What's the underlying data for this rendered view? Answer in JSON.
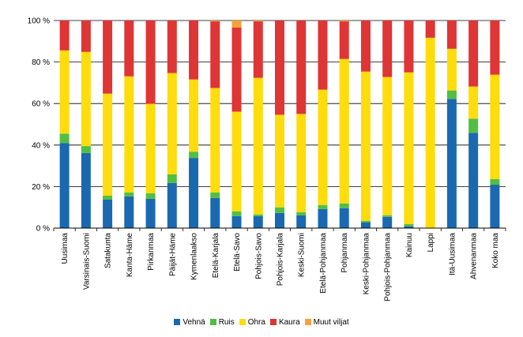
{
  "chart_data": {
    "type": "bar",
    "stacked": true,
    "ylim": [
      0,
      100
    ],
    "yticks": [
      "0 %",
      "20 %",
      "40 %",
      "60 %",
      "80 %",
      "100 %"
    ],
    "grid": true,
    "legend_position": "bottom",
    "categories": [
      "Uusimaa",
      "Varsinais-Suomi",
      "Satakunta",
      "Kanta-Häme",
      "Pirkanmaa",
      "Päijät-Häme",
      "Kymenlaakso",
      "Etelä-Karjala",
      "Etelä-Savo",
      "Pohjois-Savo",
      "Pohjois-Karjala",
      "Keski-Suomi",
      "Etelä-Pohjanmaa",
      "Pohjanmaa",
      "Keski-Pohjanmaa",
      "Pohjois-Pohjanmaa",
      "Kainuu",
      "Lappi",
      "Itä-Uusimaa",
      "Ahvenanmaa",
      "Koko maa"
    ],
    "series": [
      {
        "name": "Vehnä",
        "color": "#1a69b0",
        "values": [
          41.0,
          36.2,
          13.7,
          15.3,
          14.1,
          21.7,
          33.8,
          14.5,
          5.8,
          5.8,
          7.3,
          6.2,
          9.2,
          9.6,
          2.8,
          5.4,
          0.9,
          0,
          62.2,
          45.9,
          20.9
        ]
      },
      {
        "name": "Ruis",
        "color": "#52be43",
        "values": [
          4.5,
          3.3,
          1.9,
          1.9,
          2.7,
          4.2,
          3.0,
          2.7,
          2.3,
          0.8,
          2.7,
          1.5,
          1.9,
          2.3,
          0.7,
          0.8,
          1.1,
          0,
          4.1,
          6.8,
          2.7
        ]
      },
      {
        "name": "Ohra",
        "color": "#ffdc0b",
        "values": [
          40.1,
          45.4,
          49.2,
          55.9,
          43.1,
          48.8,
          34.8,
          50.3,
          48.0,
          65.8,
          44.6,
          47.3,
          55.6,
          69.6,
          71.9,
          66.6,
          73.0,
          91.7,
          20.1,
          15.5,
          50.3
        ]
      },
      {
        "name": "Kaura",
        "color": "#de3535",
        "values": [
          14.4,
          15.1,
          35.2,
          26.9,
          40.1,
          25.3,
          28.4,
          32.1,
          40.5,
          27.2,
          45.4,
          45.0,
          33.3,
          18.1,
          24.6,
          27.2,
          25.0,
          8.3,
          13.6,
          31.8,
          26.1
        ]
      },
      {
        "name": "Muut viljat",
        "color": "#f5a238",
        "values": [
          0,
          0,
          0,
          0,
          0,
          0,
          0,
          0.4,
          3.4,
          0.4,
          0,
          0,
          0,
          0.4,
          0,
          0,
          0,
          0,
          0,
          0,
          0
        ]
      }
    ]
  }
}
